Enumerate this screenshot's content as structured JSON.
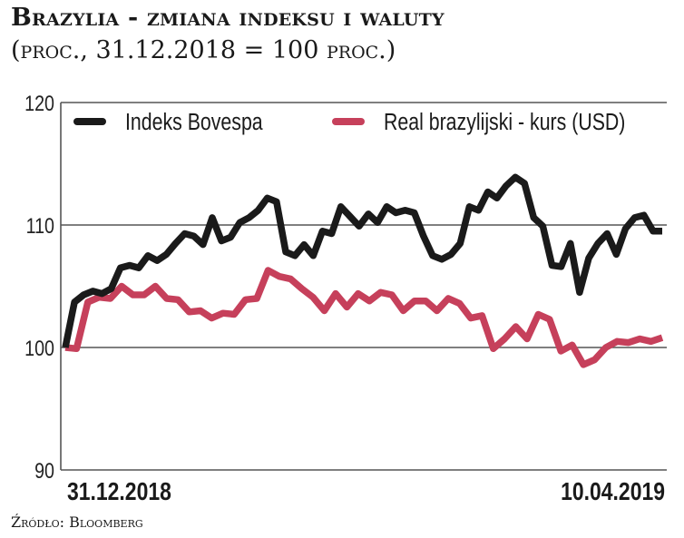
{
  "chart_data": {
    "type": "line",
    "title": "Brazylia - zmiana indeksu i waluty",
    "subtitle": "(proc., 31.12.2018 = 100 proc.)",
    "xlabel": "",
    "ylabel": "",
    "x_tick_labels": [
      "31.12.2018",
      "10.04.2019"
    ],
    "x_range": [
      "31.12.2018",
      "10.04.2019"
    ],
    "ylim": [
      90,
      120
    ],
    "y_ticks": [
      90,
      100,
      110,
      120
    ],
    "y_tick_labels": [
      "90",
      "100",
      "110",
      "120"
    ],
    "grid": "horizontal",
    "legend_placement": "top",
    "series": [
      {
        "name": "Indeks Bovespa",
        "color": "#1a1a1a",
        "values": [
          100,
          103.7,
          104.3,
          104.6,
          104.4,
          104.8,
          106.5,
          106.7,
          106.5,
          107.5,
          107.1,
          107.6,
          108.5,
          109.3,
          109.1,
          108.4,
          110.6,
          108.7,
          109.0,
          110.2,
          110.6,
          111.2,
          112.2,
          111.9,
          107.8,
          107.5,
          108.4,
          107.5,
          109.5,
          109.3,
          111.5,
          110.7,
          109.9,
          110.9,
          110.2,
          111.5,
          111.0,
          111.2,
          111.0,
          109.1,
          107.5,
          107.2,
          107.6,
          108.5,
          111.5,
          111.2,
          112.7,
          112.2,
          113.2,
          113.9,
          113.4,
          110.6,
          109.9,
          106.7,
          106.6,
          108.5,
          104.5,
          107.3,
          108.5,
          109.3,
          107.6,
          109.7,
          110.6,
          110.8,
          109.5,
          109.5
        ]
      },
      {
        "name": "Real brazylijski - kurs (USD)",
        "color": "#c6405b",
        "values": [
          100,
          99.9,
          103.7,
          104.1,
          104.0,
          105.0,
          104.3,
          104.3,
          105.0,
          104.0,
          103.9,
          102.9,
          103.0,
          102.4,
          102.8,
          102.7,
          103.9,
          104.0,
          106.3,
          105.8,
          105.6,
          104.8,
          104.1,
          103.0,
          104.4,
          103.3,
          104.4,
          103.8,
          104.5,
          104.3,
          103.0,
          103.8,
          103.8,
          103.0,
          104.0,
          103.6,
          102.4,
          102.6,
          99.9,
          100.7,
          101.7,
          100.7,
          102.7,
          102.3,
          99.7,
          100.2,
          98.6,
          99.0,
          100.0,
          100.5,
          100.4,
          100.7,
          100.5,
          100.8
        ]
      }
    ]
  },
  "source": "Źródło: Bloomberg"
}
